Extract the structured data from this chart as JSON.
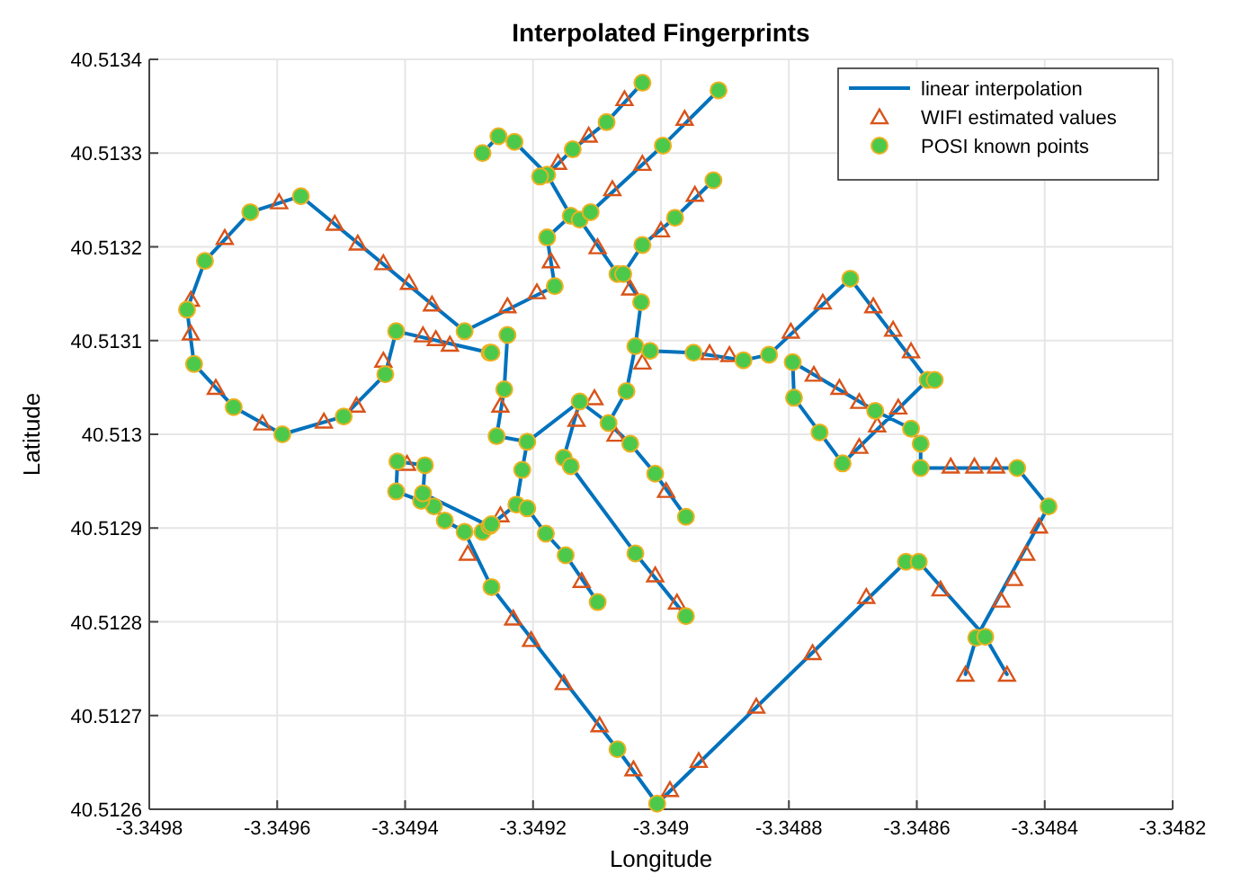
{
  "chart_data": {
    "type": "scatter",
    "title": "Interpolated Fingerprints",
    "xlabel": "Longitude",
    "ylabel": "Latitude",
    "xlim": [
      -3.3498,
      -3.3482
    ],
    "xticks": [
      -3.3498,
      -3.3496,
      -3.3494,
      -3.3492,
      -3.349,
      -3.3488,
      -3.3486,
      -3.3484,
      -3.3482
    ],
    "ylim": [
      40.5126,
      40.5134
    ],
    "yticks": [
      40.5126,
      40.5127,
      40.5128,
      40.5129,
      40.513,
      40.5131,
      40.5132,
      40.5133,
      40.5134
    ],
    "grid": true,
    "legend": "top right",
    "series": [
      {
        "name": "linear interpolation",
        "type": "line",
        "color": "#0072bd",
        "marker": "none",
        "line_style": "solid",
        "x": [
          -3.349307,
          -3.349563,
          -3.349642,
          -3.349713,
          -3.349741,
          -3.34973,
          -3.349668,
          -3.349592,
          -3.349496,
          -3.349431,
          -3.349414,
          -3.349268,
          null,
          -3.349307,
          -3.349166,
          -3.349178,
          -3.349141,
          -3.349127,
          -3.34911,
          -3.348997,
          -3.34891,
          null,
          -3.349141,
          -3.349178,
          -3.349229,
          -3.349254,
          -3.349279,
          null,
          -3.349178,
          -3.349138,
          -3.349085,
          -3.349029,
          null,
          -3.349127,
          -3.349068,
          -3.349059,
          -3.349031,
          -3.34904,
          -3.349017,
          -3.348949,
          -3.348871,
          -3.348831,
          -3.348704,
          -3.348583,
          -3.348716,
          -3.348752,
          -3.348792,
          -3.348794,
          -3.348665,
          -3.348609,
          -3.348594,
          -3.348594,
          -3.348443,
          -3.348394,
          -3.348507,
          -3.348524,
          null,
          -3.349059,
          -3.349029,
          -3.348978,
          -3.348918,
          null,
          -3.348459,
          -3.348493,
          -3.348597,
          -3.348617,
          -3.349006,
          -3.349068,
          -3.349265,
          -3.349307,
          -3.349338,
          -3.349355,
          -3.349375,
          -3.349414,
          -3.349412,
          -3.349369,
          -3.349372,
          -3.349268,
          null,
          -3.34904,
          -3.349054,
          -3.349082,
          -3.349127,
          -3.349209,
          -3.349257,
          -3.349245,
          -3.34924,
          null,
          -3.349209,
          -3.349217,
          -3.349226,
          -3.349265,
          -3.349268,
          null,
          -3.349127,
          -3.349152,
          -3.349141,
          -3.34904,
          -3.348961,
          null,
          -3.349226,
          -3.349209,
          -3.34918,
          -3.349149,
          -3.349099,
          null,
          -3.349082,
          -3.349048,
          -3.349009,
          -3.348961
        ],
        "values": [
          40.51311,
          40.513254,
          40.513237,
          40.513185,
          40.513133,
          40.513075,
          40.513029,
          40.513,
          40.513019,
          40.513064,
          40.51311,
          40.513087,
          null,
          40.51311,
          40.513158,
          40.51321,
          40.513233,
          40.513229,
          40.513237,
          40.513308,
          40.513367,
          null,
          40.513233,
          40.513277,
          40.513312,
          40.513318,
          40.5133,
          null,
          40.513277,
          40.513304,
          40.513333,
          40.513375,
          null,
          40.513229,
          40.513171,
          40.513171,
          40.513141,
          40.513094,
          40.513089,
          40.513087,
          40.513079,
          40.513085,
          40.513166,
          40.513058,
          40.512969,
          40.513002,
          40.513039,
          40.513077,
          40.513025,
          40.513006,
          40.51299,
          40.512964,
          40.512964,
          40.512923,
          40.512783,
          40.512744,
          null,
          40.513171,
          40.513202,
          40.513231,
          40.513271,
          null,
          40.512744,
          40.512784,
          40.512864,
          40.512864,
          40.512606,
          40.512664,
          40.512837,
          40.512896,
          40.512908,
          40.512923,
          40.512929,
          40.512939,
          40.512971,
          40.512967,
          40.512937,
          40.512902,
          null,
          40.513094,
          40.513046,
          40.513012,
          40.513035,
          40.512992,
          40.512998,
          40.513048,
          40.513106,
          null,
          40.512992,
          40.512962,
          40.512925,
          40.512904,
          40.512902,
          null,
          40.513035,
          40.512975,
          40.512966,
          40.512873,
          40.512806,
          null,
          40.512925,
          40.512921,
          40.512894,
          40.512871,
          40.512821,
          null,
          40.513012,
          40.51299,
          40.512958,
          40.512912
        ]
      },
      {
        "name": "WIFI estimated values",
        "color": "#d95319",
        "marker": "triangle",
        "x": [
          -3.349597,
          -3.349682,
          -3.349735,
          -3.349735,
          -3.349696,
          -3.349623,
          -3.349527,
          -3.349476,
          -3.349434,
          -3.34951,
          -3.349474,
          -3.349434,
          -3.349394,
          -3.349358,
          -3.349372,
          -3.349352,
          -3.34933,
          -3.34924,
          -3.349194,
          -3.349172,
          -3.349076,
          -3.349029,
          -3.348963,
          -3.349161,
          -3.349113,
          -3.349057,
          -3.349099,
          -3.349048,
          -3.349,
          -3.348947,
          -3.348924,
          -3.348893,
          -3.348797,
          -3.348747,
          -3.348668,
          -3.348637,
          -3.348609,
          -3.348629,
          -3.348662,
          -3.348761,
          -3.348721,
          -3.34869,
          -3.34869,
          -3.348547,
          -3.34851,
          -3.348476,
          -3.348409,
          -3.348429,
          -3.348448,
          -3.348468,
          -3.348524,
          -3.348459,
          -3.348563,
          -3.348679,
          -3.348763,
          -3.348851,
          -3.348941,
          -3.348986,
          -3.349043,
          -3.349096,
          -3.349152,
          -3.349203,
          -3.349231,
          -3.349302,
          -3.349397,
          -3.349251,
          -3.349251,
          -3.349104,
          -3.349132,
          -3.349029,
          -3.349071,
          -3.349009,
          -3.348975,
          -3.349124,
          -3.348992
        ],
        "values": [
          40.513248,
          40.51321,
          40.513144,
          40.513108,
          40.51305,
          40.513012,
          40.513014,
          40.513031,
          40.513079,
          40.513225,
          40.513204,
          40.513183,
          40.513162,
          40.513139,
          40.513106,
          40.513102,
          40.513096,
          40.513137,
          40.513152,
          40.513185,
          40.513262,
          40.513289,
          40.513337,
          40.51329,
          40.513319,
          40.513358,
          40.5132,
          40.513156,
          40.513218,
          40.513256,
          40.513087,
          40.513085,
          40.51311,
          40.513141,
          40.513137,
          40.513112,
          40.513089,
          40.513029,
          40.51301,
          40.513064,
          40.51305,
          40.513035,
          40.512987,
          40.512966,
          40.512966,
          40.512966,
          40.512902,
          40.512873,
          40.512846,
          40.512823,
          40.512744,
          40.512744,
          40.512835,
          40.512827,
          40.512767,
          40.51271,
          40.512652,
          40.512621,
          40.512643,
          40.51269,
          40.512735,
          40.512781,
          40.512804,
          40.512873,
          40.512969,
          40.512914,
          40.513031,
          40.513039,
          40.513016,
          40.513077,
          40.513,
          40.51285,
          40.512821,
          40.512844,
          40.51294
        ]
      },
      {
        "name": "POSI known points",
        "color": "#4cc94a",
        "marker": "circle",
        "x": [
          -3.349563,
          -3.349642,
          -3.349713,
          -3.349741,
          -3.34973,
          -3.349668,
          -3.349592,
          -3.349496,
          -3.349431,
          -3.349414,
          -3.349307,
          -3.349268,
          -3.349166,
          -3.349178,
          -3.349141,
          -3.349127,
          -3.34911,
          -3.348997,
          -3.34891,
          -3.349178,
          -3.349189,
          -3.349229,
          -3.349254,
          -3.349279,
          -3.349138,
          -3.349085,
          -3.349029,
          -3.349068,
          -3.349059,
          -3.349029,
          -3.348978,
          -3.348918,
          -3.349031,
          -3.34904,
          -3.349017,
          -3.348949,
          -3.348871,
          -3.348831,
          -3.348704,
          -3.348583,
          -3.348572,
          -3.348665,
          -3.348609,
          -3.348594,
          -3.348794,
          -3.348792,
          -3.348752,
          -3.348716,
          -3.348594,
          -3.348443,
          -3.348394,
          -3.348507,
          -3.348493,
          -3.348617,
          -3.348597,
          -3.349006,
          -3.349068,
          -3.349265,
          -3.349307,
          -3.349279,
          -3.349268,
          -3.349338,
          -3.349355,
          -3.349375,
          -3.349414,
          -3.349412,
          -3.349369,
          -3.349372,
          -3.34924,
          -3.349265,
          -3.349245,
          -3.349257,
          -3.349209,
          -3.349217,
          -3.349152,
          -3.349141,
          -3.349226,
          -3.349209,
          -3.349265,
          -3.34918,
          -3.349149,
          -3.349099,
          -3.349048,
          -3.349009,
          -3.348961,
          -3.34904,
          -3.348961,
          -3.349127,
          -3.349082,
          -3.349054
        ],
        "values": [
          40.513254,
          40.513237,
          40.513185,
          40.513133,
          40.513075,
          40.513029,
          40.513,
          40.513019,
          40.513064,
          40.51311,
          40.51311,
          40.513087,
          40.513158,
          40.51321,
          40.513233,
          40.513229,
          40.513237,
          40.513308,
          40.513367,
          40.513277,
          40.513275,
          40.513312,
          40.513318,
          40.5133,
          40.513304,
          40.513333,
          40.513375,
          40.513171,
          40.513171,
          40.513202,
          40.513231,
          40.513271,
          40.513141,
          40.513094,
          40.513089,
          40.513087,
          40.513079,
          40.513085,
          40.513166,
          40.513058,
          40.513058,
          40.513025,
          40.513006,
          40.51299,
          40.513077,
          40.513039,
          40.513002,
          40.512969,
          40.512964,
          40.512964,
          40.512923,
          40.512783,
          40.512784,
          40.512864,
          40.512864,
          40.512606,
          40.512664,
          40.512837,
          40.512896,
          40.512896,
          40.512902,
          40.512908,
          40.512923,
          40.512929,
          40.512939,
          40.512971,
          40.512967,
          40.512937,
          40.513106,
          40.513087,
          40.513048,
          40.512998,
          40.512992,
          40.512962,
          40.512975,
          40.512966,
          40.512925,
          40.512921,
          40.512904,
          40.512894,
          40.512871,
          40.512821,
          40.51299,
          40.512958,
          40.512912,
          40.512873,
          40.512806,
          40.513035,
          40.513012,
          40.513046
        ]
      }
    ]
  }
}
